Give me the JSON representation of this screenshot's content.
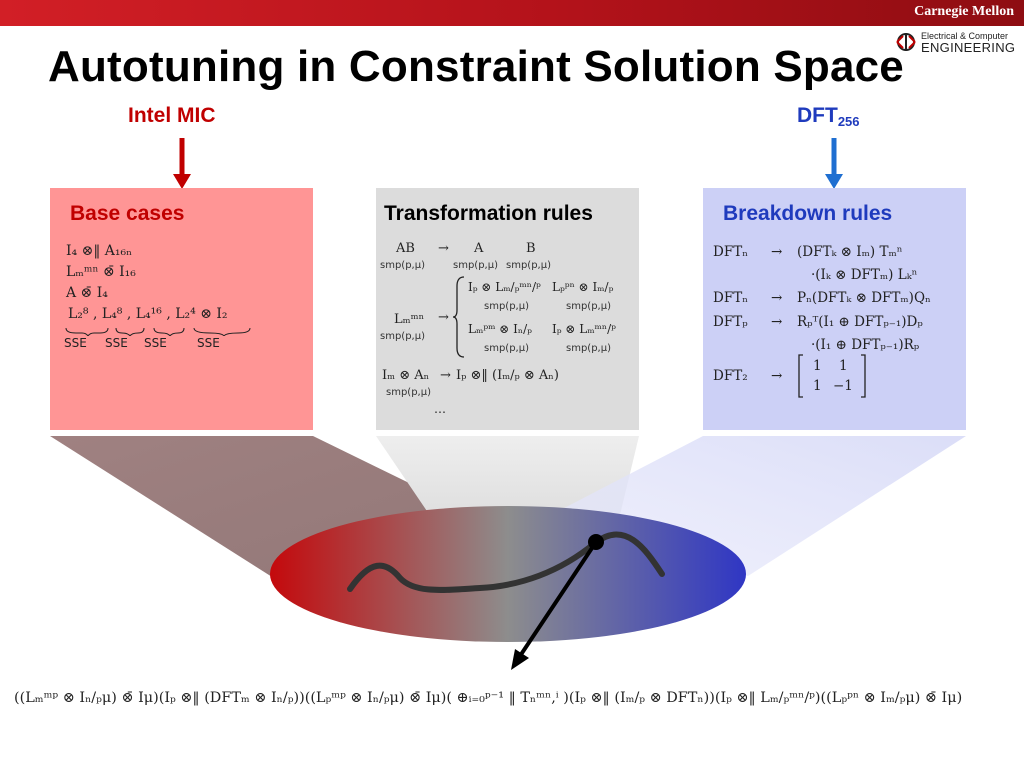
{
  "header": {
    "org": "Carnegie Mellon",
    "logo_line1": "Electrical & Computer",
    "logo_line2": "ENGINEERING",
    "title": "Autotuning in Constraint Solution Space"
  },
  "tags": {
    "left": "Intel MIC",
    "right_main": "DFT",
    "right_sub": "256"
  },
  "boxes": {
    "base": {
      "heading": "Base cases",
      "lines": [
        "I₄ ⊗‖ A₁₆ₙ",
        "Lₘᵐⁿ ⊗̄ I₁₆",
        "A ⊗̄ I₄",
        "L₂⁸ , L₄⁸ , L₄¹⁶ , L₂⁴ ⊗ I₂"
      ],
      "sse_labels": [
        "SSE",
        "SSE",
        "SSE",
        "SSE"
      ]
    },
    "transform": {
      "heading": "Transformation rules",
      "rule1_lhs": "AB",
      "rule1_rhs_a": "A",
      "rule1_rhs_b": "B",
      "smp": "smp(p,μ)",
      "rule2_lhs": "Lₘᵐⁿ",
      "rule2_opt1a": "Iₚ ⊗ Lₘ/ₚᵐⁿ/ᵖ",
      "rule2_opt1b": "Lₚᵖⁿ ⊗ Iₘ/ₚ",
      "rule2_opt2a": "Lₘᵖᵐ ⊗ Iₙ/ₚ",
      "rule2_opt2b": "Iₚ ⊗ Lₘᵐⁿ/ᵖ",
      "rule3_lhs": "Iₘ ⊗ Aₙ",
      "rule3_rhs": "Iₚ ⊗‖ (Iₘ/ₚ ⊗ Aₙ)",
      "arrow": "→",
      "ellipsis": "…"
    },
    "breakdown": {
      "heading": "Breakdown rules",
      "r1_lhs": "DFTₙ",
      "r1_rhs1": "(DFTₖ ⊗ Iₘ) Tₘⁿ",
      "r1_rhs2": "·(Iₖ ⊗ DFTₘ) Lₖⁿ",
      "r2_lhs": "DFTₙ",
      "r2_rhs": "Pₙ(DFTₖ ⊗ DFTₘ)Qₙ",
      "r3_lhs": "DFTₚ",
      "r3_rhs1": "Rₚᵀ(I₁ ⊕ DFTₚ₋₁)Dₚ",
      "r3_rhs2": "·(I₁ ⊕ DFTₚ₋₁)Rₚ",
      "r4_lhs": "DFT₂",
      "matrix": [
        "1",
        "1",
        "1",
        "−1"
      ],
      "arrow": "→"
    }
  },
  "bottom_formula": "((Lₘᵐᵖ ⊗ Iₙ/ₚμ) ⊗̄ Iμ)(Iₚ ⊗‖ (DFTₘ ⊗ Iₙ/ₚ))((Lₚᵐᵖ ⊗ Iₙ/ₚμ) ⊗̄ Iμ)( ⊕ᵢ₌₀ᵖ⁻¹ ‖ Tₙᵐⁿ,ⁱ )(Iₚ ⊗‖ (Iₘ/ₚ ⊗ DFTₙ))(Iₚ ⊗‖ Lₘ/ₚᵐⁿ/ᵖ)((Lₚᵖⁿ ⊗ Iₘ/ₚμ) ⊗̄ Iμ)",
  "colors": {
    "brand_red": "#c00000",
    "brand_blue": "#1f3bbd",
    "box_red": "#ff9595",
    "box_gray": "#dcdcdc",
    "box_blue": "#ccd0f6"
  }
}
